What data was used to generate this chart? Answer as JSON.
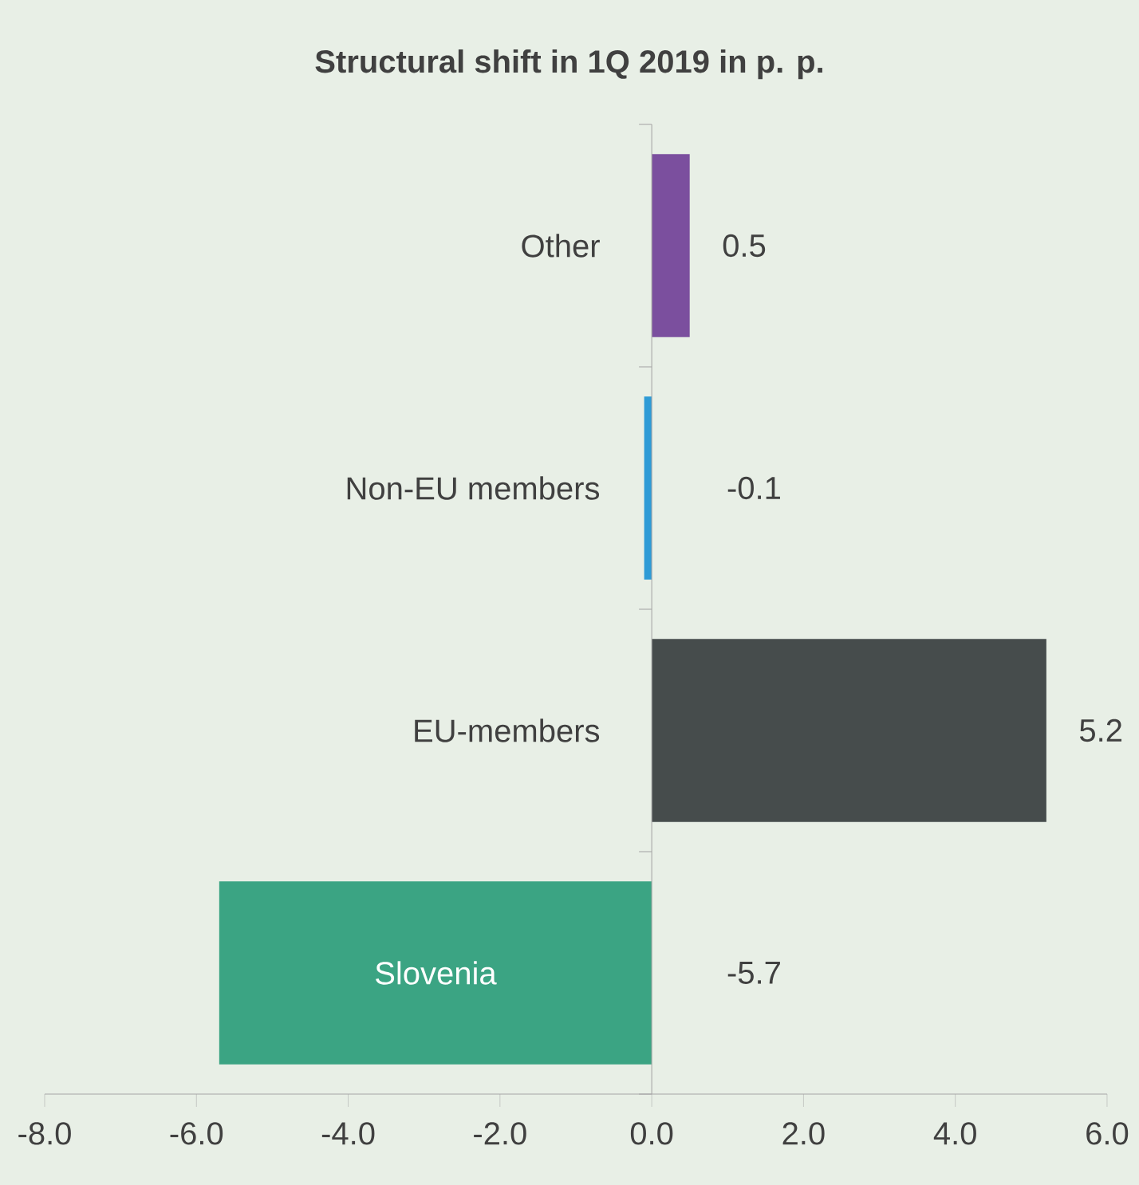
{
  "chart_data": {
    "type": "bar",
    "orientation": "horizontal",
    "title": "Structural shift in 1Q 2019 in p. p.",
    "categories": [
      "Other",
      "Non-EU members",
      "EU-members",
      "Slovenia"
    ],
    "values": [
      0.5,
      -0.1,
      5.2,
      -5.7
    ],
    "colors": [
      "#7b4f9e",
      "#2e9bd6",
      "#464c4c",
      "#3ba483"
    ],
    "data_labels": true,
    "xlim": [
      -8,
      6
    ],
    "xticks": [
      {
        "value": -8,
        "label": "-8.0"
      },
      {
        "value": -6,
        "label": "-6.0"
      },
      {
        "value": -4,
        "label": "-4.0"
      },
      {
        "value": -2,
        "label": "-2.0"
      },
      {
        "value": 0,
        "label": "0.0"
      },
      {
        "value": 2,
        "label": "2.0"
      },
      {
        "value": 4,
        "label": "4.0"
      },
      {
        "value": 6,
        "label": "6.0"
      }
    ]
  }
}
